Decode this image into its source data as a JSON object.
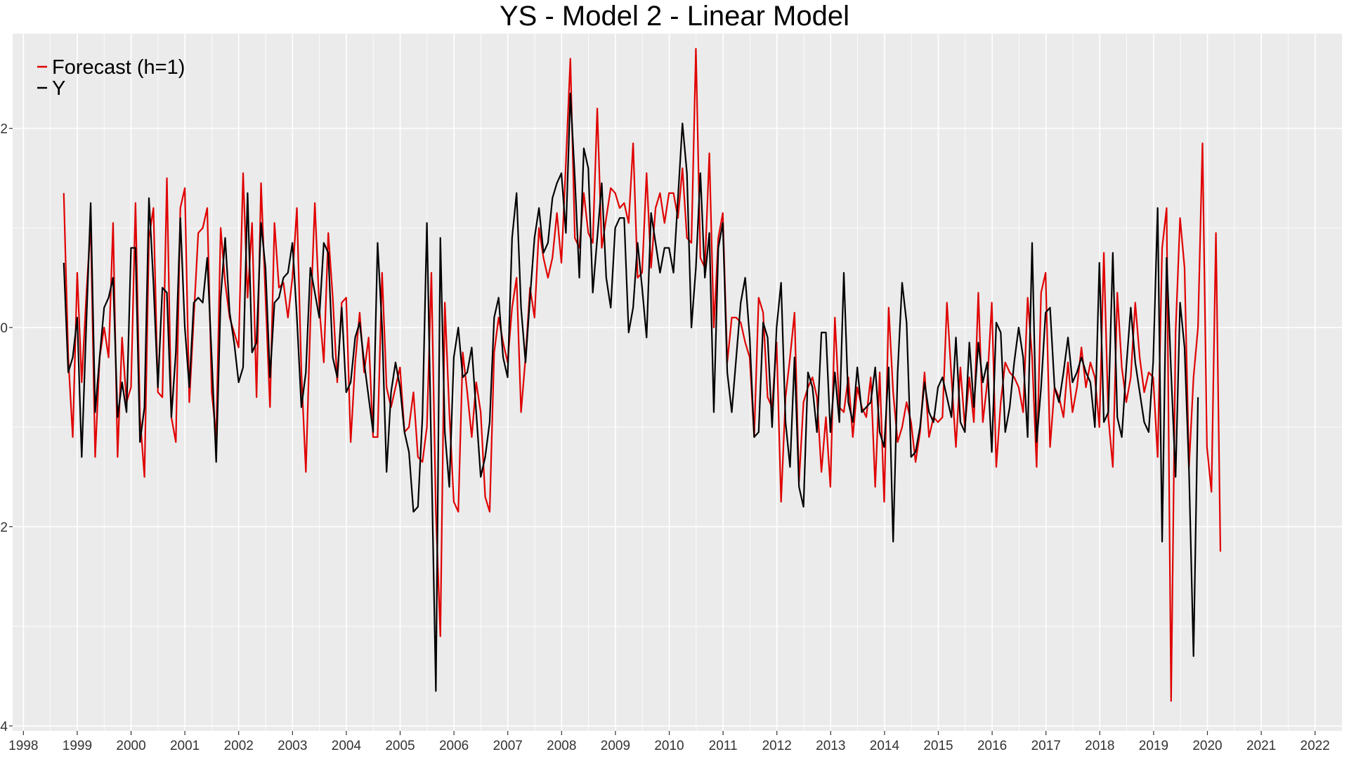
{
  "chart_data": {
    "type": "line",
    "title": "YS - Model 2 - Linear Model",
    "xlabel": "",
    "ylabel": "",
    "xlim": [
      1997.8,
      2022.5
    ],
    "ylim": [
      -4.05,
      2.95
    ],
    "x_ticks": [
      "1998",
      "1999",
      "2000",
      "2001",
      "2002",
      "2003",
      "2004",
      "2005",
      "2006",
      "2007",
      "2008",
      "2009",
      "2010",
      "2011",
      "2012",
      "2013",
      "2014",
      "2015",
      "2016",
      "2017",
      "2018",
      "2019",
      "2020",
      "2021",
      "2022"
    ],
    "y_ticks": [
      -4,
      -2,
      0,
      2
    ],
    "y_tick_labels": [
      "-4",
      "-2",
      "0",
      "2"
    ],
    "grid": true,
    "legend_position": "top-left",
    "x_start": 1998.75,
    "x_step": 0.0833,
    "series": [
      {
        "name": "Forecast (h=1)",
        "color": "#e00000",
        "values": [
          1.35,
          -0.3,
          -1.1,
          0.55,
          -0.55,
          0.3,
          1.05,
          -1.3,
          -0.3,
          0.0,
          -0.3,
          1.05,
          -1.3,
          -0.1,
          -0.75,
          -0.6,
          1.25,
          -0.9,
          -1.5,
          0.9,
          1.2,
          -0.65,
          -0.7,
          1.5,
          -0.9,
          -1.15,
          1.2,
          1.4,
          -0.75,
          0.1,
          0.95,
          1.0,
          1.2,
          -0.65,
          -1.1,
          1.0,
          0.45,
          0.1,
          -0.05,
          -0.2,
          1.55,
          0.3,
          1.05,
          -0.7,
          1.45,
          0.3,
          -0.8,
          1.05,
          0.4,
          0.45,
          0.1,
          0.5,
          1.2,
          -0.45,
          -1.45,
          0.05,
          1.25,
          0.2,
          -0.35,
          0.95,
          0.3,
          -0.55,
          0.25,
          0.3,
          -1.15,
          -0.35,
          0.15,
          -0.45,
          -0.1,
          -1.1,
          -1.1,
          0.55,
          -0.6,
          -0.8,
          -0.6,
          -0.4,
          -1.05,
          -1.0,
          -0.65,
          -1.3,
          -1.35,
          -1.0,
          0.55,
          -1.85,
          -3.1,
          0.25,
          -0.85,
          -1.75,
          -1.85,
          -0.25,
          -0.65,
          -1.1,
          -0.55,
          -0.85,
          -1.7,
          -1.85,
          -0.25,
          0.1,
          -0.15,
          -0.35,
          0.2,
          0.5,
          -0.85,
          -0.3,
          0.4,
          0.1,
          1.0,
          0.7,
          0.5,
          0.7,
          1.15,
          0.65,
          1.65,
          2.7,
          0.9,
          0.8,
          1.35,
          0.95,
          0.85,
          2.2,
          0.8,
          1.1,
          1.4,
          1.35,
          1.2,
          1.25,
          1.05,
          1.85,
          0.5,
          0.55,
          1.55,
          0.6,
          1.2,
          1.35,
          1.05,
          1.35,
          1.35,
          1.1,
          1.6,
          0.9,
          0.85,
          2.8,
          0.7,
          0.6,
          1.75,
          0.0,
          0.9,
          1.15,
          -0.35,
          0.1,
          0.1,
          0.05,
          -0.15,
          -0.3,
          -1.1,
          0.3,
          0.15,
          -0.7,
          -0.8,
          -0.15,
          -1.75,
          -0.7,
          -0.3,
          0.15,
          -1.55,
          -0.75,
          -0.6,
          -0.5,
          -0.7,
          -1.45,
          -0.9,
          -1.6,
          0.1,
          -0.8,
          -0.85,
          -0.5,
          -1.1,
          -0.6,
          -0.8,
          -0.9,
          -0.5,
          -1.6,
          -0.45,
          -1.75,
          0.2,
          -0.65,
          -1.15,
          -1.0,
          -0.75,
          -0.95,
          -1.35,
          -1.05,
          -0.45,
          -1.1,
          -0.9,
          -0.95,
          -0.9,
          0.25,
          -0.5,
          -1.2,
          -0.4,
          -1.0,
          -0.5,
          -0.95,
          0.35,
          -0.95,
          -0.55,
          0.25,
          -1.4,
          -0.75,
          -0.35,
          -0.45,
          -0.5,
          -0.6,
          -0.85,
          0.3,
          -0.3,
          -1.4,
          0.35,
          0.55,
          -1.2,
          -0.6,
          -0.7,
          -0.9,
          -0.35,
          -0.85,
          -0.6,
          -0.2,
          -0.6,
          -0.35,
          -0.5,
          -1.0,
          0.75,
          -0.9,
          -1.4,
          0.35,
          -0.4,
          -0.75,
          -0.5,
          0.25,
          -0.3,
          -0.65,
          -0.45,
          -0.5,
          -1.3,
          0.8,
          1.2,
          -3.75,
          -0.05,
          1.1,
          0.6,
          -1.4,
          -0.5,
          0.0,
          1.85,
          -1.2,
          -1.65,
          0.95,
          -2.25
        ]
      },
      {
        "name": "Y",
        "color": "#000000",
        "values": [
          0.65,
          -0.45,
          -0.3,
          0.1,
          -1.3,
          0.0,
          1.25,
          -0.85,
          -0.3,
          0.2,
          0.3,
          0.5,
          -0.9,
          -0.55,
          -0.85,
          0.8,
          0.8,
          -1.15,
          -0.8,
          1.3,
          0.45,
          -0.6,
          0.4,
          0.35,
          -0.9,
          -0.25,
          1.1,
          0.0,
          -0.6,
          0.25,
          0.3,
          0.25,
          0.7,
          -0.3,
          -1.35,
          0.3,
          0.9,
          0.15,
          -0.15,
          -0.55,
          -0.4,
          1.35,
          -0.25,
          -0.15,
          1.05,
          0.6,
          -0.5,
          0.25,
          0.3,
          0.5,
          0.55,
          0.85,
          0.1,
          -0.8,
          -0.45,
          0.6,
          0.35,
          0.1,
          0.85,
          0.75,
          -0.3,
          -0.5,
          0.2,
          -0.65,
          -0.55,
          -0.1,
          0.05,
          -0.35,
          -0.7,
          -1.05,
          0.85,
          0.0,
          -1.45,
          -0.65,
          -0.35,
          -0.6,
          -1.05,
          -1.25,
          -1.85,
          -1.8,
          -0.9,
          1.05,
          -1.3,
          -3.65,
          0.9,
          -1.05,
          -1.6,
          -0.3,
          0.0,
          -0.5,
          -0.45,
          -0.2,
          -0.85,
          -1.5,
          -1.3,
          -0.95,
          0.1,
          0.3,
          -0.3,
          -0.5,
          0.9,
          1.35,
          0.2,
          -0.35,
          0.3,
          0.9,
          1.2,
          0.75,
          0.85,
          1.3,
          1.45,
          1.55,
          0.95,
          2.35,
          1.5,
          0.5,
          1.8,
          1.6,
          0.35,
          0.9,
          1.45,
          0.5,
          0.2,
          1.0,
          1.1,
          1.1,
          -0.05,
          0.2,
          0.85,
          0.4,
          -0.1,
          1.15,
          0.85,
          0.55,
          0.8,
          0.8,
          0.55,
          1.3,
          2.05,
          1.55,
          0.0,
          0.6,
          1.55,
          0.5,
          0.95,
          -0.85,
          0.8,
          1.05,
          -0.45,
          -0.85,
          -0.3,
          0.25,
          0.5,
          -0.1,
          -1.1,
          -1.05,
          0.05,
          -0.1,
          -1.0,
          0.0,
          0.45,
          -0.95,
          -1.4,
          -0.3,
          -1.6,
          -1.8,
          -0.45,
          -0.6,
          -1.05,
          -0.05,
          -0.05,
          -1.05,
          -0.45,
          -0.95,
          0.55,
          -0.75,
          -0.95,
          -0.4,
          -0.85,
          -0.8,
          -0.75,
          -0.4,
          -1.05,
          -1.2,
          -0.4,
          -2.15,
          -0.45,
          0.45,
          0.05,
          -1.3,
          -1.25,
          -1.0,
          -0.55,
          -0.85,
          -0.95,
          -0.6,
          -0.5,
          -0.7,
          -0.9,
          -0.1,
          -0.95,
          -1.05,
          -0.15,
          -0.8,
          -0.15,
          -0.55,
          -0.35,
          -1.25,
          0.05,
          -0.05,
          -1.05,
          -0.8,
          -0.35,
          0.0,
          -0.3,
          -1.1,
          0.85,
          -1.15,
          -0.6,
          0.15,
          0.2,
          -0.6,
          -0.75,
          -0.45,
          -0.1,
          -0.55,
          -0.45,
          -0.3,
          -0.45,
          -0.55,
          -1.0,
          0.65,
          -0.95,
          -0.85,
          0.75,
          -0.9,
          -1.1,
          -0.4,
          0.2,
          -0.35,
          -0.65,
          -0.95,
          -1.05,
          -0.35,
          1.2,
          -2.15,
          0.7,
          -0.45,
          -1.5,
          0.25,
          -0.2,
          -1.45,
          -3.3,
          -0.7
        ]
      }
    ]
  }
}
